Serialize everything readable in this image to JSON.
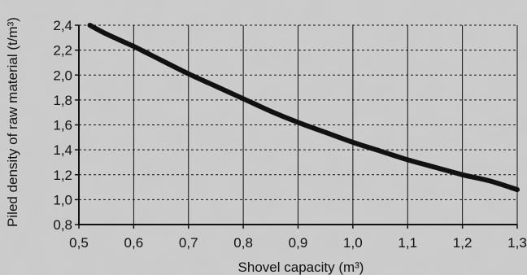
{
  "chart_data": {
    "type": "line",
    "title": "",
    "xlabel": "Shovel capacity (m³)",
    "ylabel": "Piled density of raw material (t/m³)",
    "xlim": [
      0.5,
      1.3
    ],
    "ylim": [
      0.8,
      2.4
    ],
    "x_ticks": [
      0.5,
      0.6,
      0.7,
      0.8,
      0.9,
      1.0,
      1.1,
      1.2,
      1.3
    ],
    "x_tick_labels": [
      "0,5",
      "0,6",
      "0,7",
      "0,8",
      "0,9",
      "1,0",
      "1,1",
      "1,2",
      "1,3"
    ],
    "y_ticks": [
      0.8,
      1.0,
      1.2,
      1.4,
      1.6,
      1.8,
      2.0,
      2.2,
      2.4
    ],
    "y_tick_labels": [
      "0,8",
      "1,0",
      "1,2",
      "1,4",
      "1,6",
      "1,8",
      "2,0",
      "2,2",
      "2,4"
    ],
    "grid": {
      "vertical": "solid",
      "horizontal": "dashed"
    },
    "series": [
      {
        "x": [
          0.52,
          0.55,
          0.6,
          0.65,
          0.7,
          0.75,
          0.8,
          0.85,
          0.9,
          0.95,
          1.0,
          1.05,
          1.1,
          1.15,
          1.2,
          1.25,
          1.3
        ],
        "y": [
          2.4,
          2.33,
          2.23,
          2.12,
          2.01,
          1.91,
          1.81,
          1.71,
          1.62,
          1.54,
          1.46,
          1.39,
          1.32,
          1.26,
          1.2,
          1.15,
          1.08
        ]
      }
    ],
    "colors": {
      "line": "#111111",
      "grid": "#111111",
      "background": "#c9c9c9"
    }
  }
}
